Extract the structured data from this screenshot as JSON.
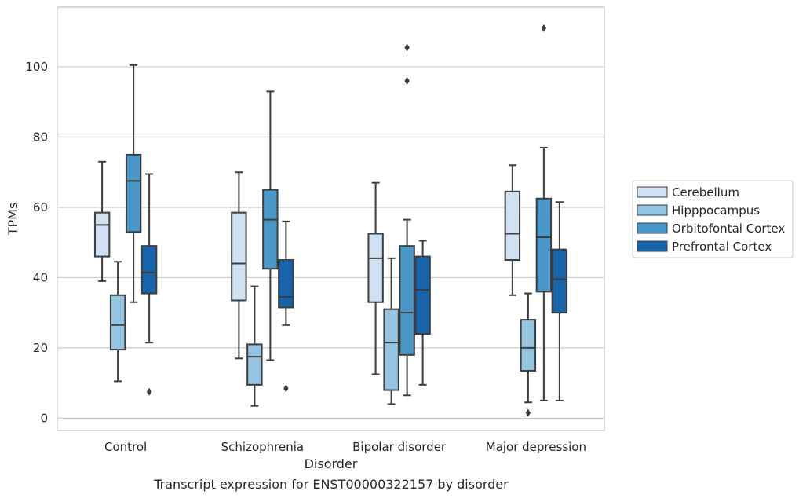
{
  "chart_data": {
    "type": "box",
    "title": "",
    "caption": "Transcript expression for ENST00000322157 by disorder",
    "xlabel": "Disorder",
    "ylabel": "TPMs",
    "ylim": [
      -3.5,
      117
    ],
    "yticks": [
      0,
      20,
      40,
      60,
      80,
      100
    ],
    "grid": "horizontal",
    "legend_position": "right",
    "categories": [
      "Control",
      "Schizophrenia",
      "Bipolar disorder",
      "Major depression"
    ],
    "series": [
      {
        "name": "Cerebellum",
        "color": "#d0e1f2",
        "boxes": [
          {
            "whisker_low": 39,
            "q1": 46,
            "median": 55,
            "q3": 58.5,
            "whisker_high": 73,
            "outliers": []
          },
          {
            "whisker_low": 17,
            "q1": 33.5,
            "median": 44,
            "q3": 58.5,
            "whisker_high": 70,
            "outliers": []
          },
          {
            "whisker_low": 12.5,
            "q1": 33,
            "median": 45.5,
            "q3": 52.5,
            "whisker_high": 67,
            "outliers": []
          },
          {
            "whisker_low": 35,
            "q1": 45,
            "median": 52.5,
            "q3": 64.5,
            "whisker_high": 72,
            "outliers": []
          }
        ]
      },
      {
        "name": "Hipppocampus",
        "color": "#94c4df",
        "boxes": [
          {
            "whisker_low": 10.5,
            "q1": 19.5,
            "median": 26.5,
            "q3": 35,
            "whisker_high": 44.5,
            "outliers": []
          },
          {
            "whisker_low": 3.5,
            "q1": 9.5,
            "median": 17.5,
            "q3": 21,
            "whisker_high": 37.5,
            "outliers": []
          },
          {
            "whisker_low": 4,
            "q1": 8,
            "median": 21.5,
            "q3": 31,
            "whisker_high": 45.5,
            "outliers": []
          },
          {
            "whisker_low": 4.5,
            "q1": 13.5,
            "median": 20,
            "q3": 28,
            "whisker_high": 35.5,
            "outliers": [
              1.5
            ]
          }
        ]
      },
      {
        "name": "Orbitofontal Cortex",
        "color": "#4a98c9",
        "boxes": [
          {
            "whisker_low": 33,
            "q1": 53,
            "median": 67.5,
            "q3": 75,
            "whisker_high": 100.5,
            "outliers": []
          },
          {
            "whisker_low": 16.5,
            "q1": 42.5,
            "median": 56.5,
            "q3": 65,
            "whisker_high": 93,
            "outliers": []
          },
          {
            "whisker_low": 6.5,
            "q1": 18,
            "median": 30,
            "q3": 49,
            "whisker_high": 56.5,
            "outliers": [
              96,
              105.5
            ]
          },
          {
            "whisker_low": 5,
            "q1": 36,
            "median": 51.5,
            "q3": 62.5,
            "whisker_high": 77,
            "outliers": [
              111
            ]
          }
        ]
      },
      {
        "name": "Prefrontal Cortex",
        "color": "#1764ab",
        "boxes": [
          {
            "whisker_low": 21.5,
            "q1": 35.5,
            "median": 41.5,
            "q3": 49,
            "whisker_high": 69.5,
            "outliers": [
              7.5
            ]
          },
          {
            "whisker_low": 26.5,
            "q1": 31.5,
            "median": 34.5,
            "q3": 45,
            "whisker_high": 56,
            "outliers": [
              8.5
            ]
          },
          {
            "whisker_low": 9.5,
            "q1": 24,
            "median": 36.5,
            "q3": 46,
            "whisker_high": 50.5,
            "outliers": []
          },
          {
            "whisker_low": 5,
            "q1": 30,
            "median": 39.5,
            "q3": 48,
            "whisker_high": 61.5,
            "outliers": []
          }
        ]
      }
    ]
  }
}
